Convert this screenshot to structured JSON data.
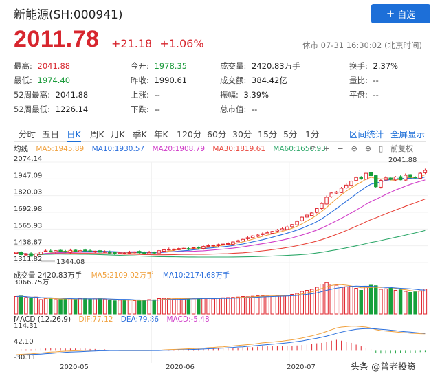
{
  "header": {
    "title": "新能源(SH:000941)",
    "add_button": "自选",
    "price": "2011.78",
    "change": "+21.18",
    "change_pct": "+1.06%",
    "status": "休市 07-31 16:30:02 (北京时间)"
  },
  "stats": [
    [
      {
        "label": "最高:",
        "value": "2041.88",
        "color": "red"
      },
      {
        "label": "今开:",
        "value": "1978.35",
        "color": "green"
      },
      {
        "label": "成交量:",
        "value": "2420.83万手",
        "color": ""
      },
      {
        "label": "换手:",
        "value": "2.37%",
        "color": ""
      }
    ],
    [
      {
        "label": "最低:",
        "value": "1974.40",
        "color": "green"
      },
      {
        "label": "昨收:",
        "value": "1990.61",
        "color": ""
      },
      {
        "label": "成交额:",
        "value": "384.42亿",
        "color": ""
      },
      {
        "label": "量比:",
        "value": "--",
        "color": ""
      }
    ],
    [
      {
        "label": "52周最高:",
        "value": "2041.88",
        "color": ""
      },
      {
        "label": "上涨:",
        "value": "--",
        "color": ""
      },
      {
        "label": "振幅:",
        "value": "3.39%",
        "color": ""
      },
      {
        "label": "平盘:",
        "value": "--",
        "color": ""
      }
    ],
    [
      {
        "label": "52周最低:",
        "value": "1226.14",
        "color": ""
      },
      {
        "label": "下跌:",
        "value": "--",
        "color": ""
      },
      {
        "label": "总市值:",
        "value": "--",
        "color": ""
      }
    ]
  ],
  "tabs": [
    "分时",
    "五日",
    "日K",
    "周K",
    "月K",
    "季K",
    "年K",
    "120分",
    "60分",
    "30分",
    "15分",
    "5分",
    "1分"
  ],
  "active_tab": "日K",
  "tab_links": [
    "区间统计",
    "全屏显示"
  ],
  "ma_labels": {
    "title": "均线",
    "ma5": "MA5:1945.89",
    "ma10": "MA10:1930.57",
    "ma20": "MA20:1908.79",
    "ma30": "MA30:1819.61",
    "ma60": "MA60:1650.93"
  },
  "tools": [
    "↶",
    "+",
    "−",
    "⊖",
    "⊕",
    "▯",
    "前复权"
  ],
  "volume_labels": {
    "title": "成交量 2420.83万手",
    "ma5": "MA5:2109.02万手",
    "ma10": "MA10:2174.68万手"
  },
  "macd_labels": {
    "title": "MACD (12,26,9)",
    "dif": "DIF:77.12",
    "dea": "DEA:79.86",
    "macd": "MACD:-5.48"
  },
  "watermark": "头条 @普老投资",
  "colors": {
    "up": "#e0262e",
    "down": "#16a03b",
    "ma5": "#f0a03c",
    "ma10": "#2b6fdc",
    "ma20": "#d03cc8",
    "ma30": "#e8443a",
    "ma60": "#2ea86a",
    "accent": "#1d6fd8"
  },
  "chart_data": {
    "type": "candlestick",
    "price_axis": [
      "2074.14",
      "1947.09",
      "1820.03",
      "1692.98",
      "1565.93",
      "1438.87",
      "1311.82"
    ],
    "price_range": [
      1311.82,
      2074.14
    ],
    "min_label": "1344.08",
    "max_label": "2041.88",
    "volume_axis": [
      "3066.75万"
    ],
    "macd_axis": [
      "114.31",
      "42.10",
      "-30.11"
    ],
    "x_ticks": [
      "2020-05",
      "2020-06",
      "2020-07"
    ],
    "closes": [
      1390,
      1372,
      1375,
      1360,
      1378,
      1392,
      1400,
      1396,
      1402,
      1398,
      1394,
      1404,
      1396,
      1402,
      1400,
      1395,
      1398,
      1390,
      1394,
      1386,
      1380,
      1385,
      1383,
      1388,
      1392,
      1386,
      1382,
      1388,
      1384,
      1402,
      1408,
      1412,
      1414,
      1418,
      1420,
      1416,
      1426,
      1422,
      1434,
      1440,
      1444,
      1448,
      1452,
      1456,
      1468,
      1478,
      1488,
      1500,
      1514,
      1520,
      1530,
      1538,
      1548,
      1560,
      1568,
      1582,
      1600,
      1624,
      1656,
      1672,
      1688,
      1722,
      1760,
      1808,
      1840,
      1848,
      1876,
      1900,
      1930,
      1958,
      1948,
      1990,
      1972,
      1888,
      1936,
      1955,
      1944,
      1962,
      1940,
      1975,
      1960,
      1955,
      1990,
      2011.78
    ],
    "volumes": [
      1700,
      1750,
      1600,
      1500,
      1650,
      1400,
      1500,
      1550,
      1400,
      1450,
      1500,
      1480,
      1420,
      1500,
      1520,
      1460,
      1480,
      1500,
      1450,
      1300,
      1280,
      1350,
      1400,
      1380,
      1300,
      1280,
      1320,
      1400,
      1380,
      1500,
      1520,
      1540,
      1480,
      1520,
      1450,
      1500,
      1480,
      1520,
      1550,
      1500,
      1480,
      1560,
      1580,
      1600,
      1620,
      1650,
      1700,
      1680,
      1720,
      1760,
      1800,
      1750,
      1700,
      1780,
      1800,
      1820,
      1900,
      2000,
      2200,
      2300,
      2400,
      2600,
      2900,
      3050,
      2900,
      2800,
      2600,
      2650,
      2700,
      2500,
      2300,
      2650,
      2800,
      2750,
      2400,
      2450,
      2500,
      2300,
      2350,
      2200,
      2100,
      2150,
      2250,
      2420.83
    ],
    "macd_dif": [
      -18,
      -16,
      -15,
      -14,
      -12,
      -10,
      -8,
      -6,
      -5,
      -3,
      -2,
      -1,
      0,
      1,
      2,
      2,
      3,
      3,
      3,
      2,
      2,
      1,
      1,
      1,
      1,
      1,
      1,
      1,
      2,
      2,
      4,
      5,
      6,
      7,
      8,
      9,
      10,
      11,
      12,
      14,
      15,
      17,
      18,
      20,
      22,
      24,
      26,
      28,
      30,
      33,
      36,
      38,
      40,
      42,
      44,
      47,
      50,
      54,
      58,
      63,
      68,
      74,
      80,
      88,
      96,
      104,
      108,
      110,
      112,
      112,
      110,
      108,
      104,
      96,
      92,
      90,
      88,
      86,
      84,
      82,
      80,
      79,
      78,
      77.12
    ],
    "macd_dea": [
      -20,
      -19,
      -18,
      -17,
      -16,
      -15,
      -13,
      -12,
      -10,
      -9,
      -7,
      -6,
      -5,
      -4,
      -3,
      -2,
      -1,
      0,
      0,
      1,
      1,
      1,
      1,
      1,
      1,
      1,
      1,
      1,
      1,
      1,
      2,
      2,
      3,
      4,
      4,
      5,
      6,
      7,
      8,
      9,
      10,
      11,
      12,
      14,
      15,
      17,
      18,
      20,
      22,
      24,
      26,
      28,
      30,
      32,
      34,
      36,
      39,
      42,
      45,
      49,
      53,
      57,
      62,
      67,
      73,
      79,
      85,
      90,
      94,
      98,
      100,
      101,
      101,
      100,
      98,
      96,
      94,
      92,
      89,
      87,
      85,
      83,
      81,
      79.86
    ]
  }
}
